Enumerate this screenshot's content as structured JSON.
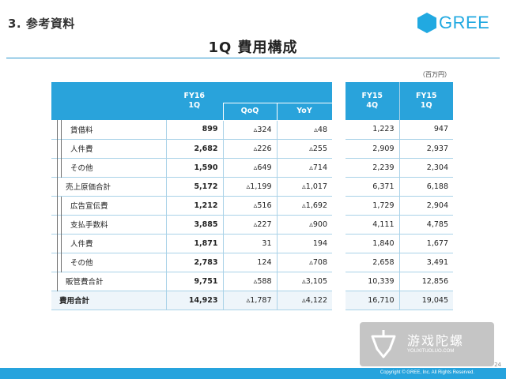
{
  "header": {
    "section_title": "3. 参考資料",
    "logo_text": "GREE",
    "main_title": "1Q 費用構成",
    "unit_note": "（百万円）"
  },
  "left_table": {
    "col_main": [
      "FY16",
      "1Q"
    ],
    "col_qoq": "QoQ",
    "col_yoy": "YoY",
    "rows": [
      {
        "label": "賃借料",
        "value": "899",
        "qoq": "▵324",
        "yoy": "▵48"
      },
      {
        "label": "人件費",
        "value": "2,682",
        "qoq": "▵226",
        "yoy": "▵255"
      },
      {
        "label": "その他",
        "value": "1,590",
        "qoq": "▵649",
        "yoy": "▵714"
      },
      {
        "label": "売上原価合計",
        "value": "5,172",
        "qoq": "▵1,199",
        "yoy": "▵1,017"
      },
      {
        "label": "広告宣伝費",
        "value": "1,212",
        "qoq": "▵516",
        "yoy": "▵1,692"
      },
      {
        "label": "支払手数料",
        "value": "3,885",
        "qoq": "▵227",
        "yoy": "▵900"
      },
      {
        "label": "人件費",
        "value": "1,871",
        "qoq": "31",
        "yoy": "194"
      },
      {
        "label": "その他",
        "value": "2,783",
        "qoq": "124",
        "yoy": "▵708"
      },
      {
        "label": "販管費合計",
        "value": "9,751",
        "qoq": "▵588",
        "yoy": "▵3,105"
      },
      {
        "label": "費用合計",
        "value": "14,923",
        "qoq": "▵1,787",
        "yoy": "▵4,122"
      }
    ]
  },
  "right_table": {
    "col_a": [
      "FY15",
      "4Q"
    ],
    "col_b": [
      "FY15",
      "1Q"
    ],
    "rows": [
      {
        "a": "1,223",
        "b": "947"
      },
      {
        "a": "2,909",
        "b": "2,937"
      },
      {
        "a": "2,239",
        "b": "2,304"
      },
      {
        "a": "6,371",
        "b": "6,188"
      },
      {
        "a": "1,729",
        "b": "2,904"
      },
      {
        "a": "4,111",
        "b": "4,785"
      },
      {
        "a": "1,840",
        "b": "1,677"
      },
      {
        "a": "2,658",
        "b": "3,491"
      },
      {
        "a": "10,339",
        "b": "12,856"
      },
      {
        "a": "16,710",
        "b": "19,045"
      }
    ]
  },
  "footer": {
    "copyright": "Copyright © GREE, Inc. All Rights Reserved.",
    "page_number": "24"
  },
  "watermark": {
    "text_cn": "游戏陀螺",
    "text_en": "YOUXITUOLUO.COM"
  },
  "colors": {
    "accent": "#29a3db",
    "rule": "#2a97cf",
    "grid": "#a9d2e8"
  }
}
